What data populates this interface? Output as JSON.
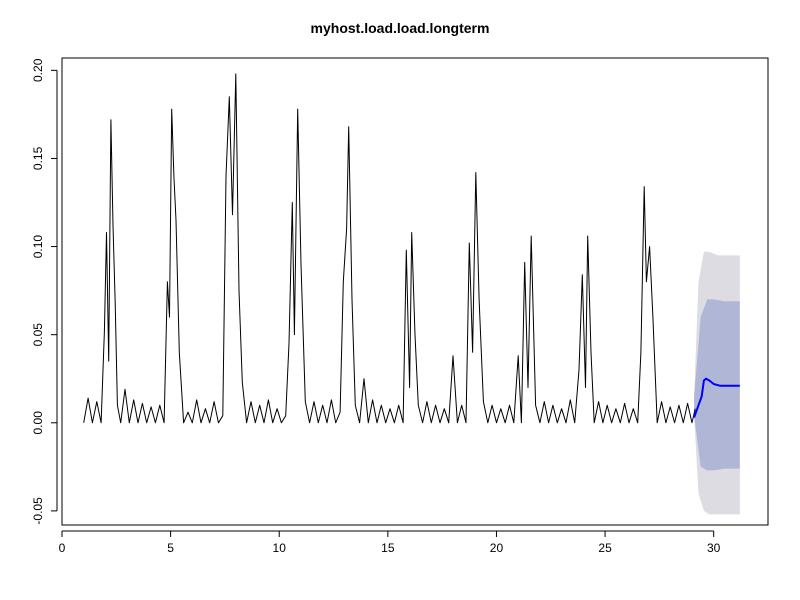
{
  "chart_data": {
    "type": "line",
    "title": "myhost.load.load.longterm",
    "xlabel": "",
    "ylabel": "",
    "xlim": [
      0,
      32.5
    ],
    "ylim": [
      -0.058,
      0.207
    ],
    "x_ticks": [
      0,
      5,
      10,
      15,
      20,
      25,
      30
    ],
    "x_tick_labels": [
      "0",
      "5",
      "10",
      "15",
      "20",
      "25",
      "30"
    ],
    "y_ticks": [
      -0.05,
      0.0,
      0.05,
      0.1,
      0.15,
      0.2
    ],
    "y_tick_labels": [
      "-0.05",
      "0.00",
      "0.05",
      "0.10",
      "0.15",
      "0.20"
    ],
    "grid": false,
    "legend": "none",
    "colors": {
      "history": "#000000",
      "forecast": "#0000ff",
      "band_inner": "#b0b6d6",
      "band_outer": "#dcdce2"
    },
    "history_peaks": [
      {
        "x": 2.25,
        "y": 0.172
      },
      {
        "x": 5.0,
        "y": 0.178
      },
      {
        "x": 7.85,
        "y": 0.198
      },
      {
        "x": 10.65,
        "y": 0.178
      },
      {
        "x": 13.2,
        "y": 0.168
      },
      {
        "x": 16.05,
        "y": 0.108
      },
      {
        "x": 18.85,
        "y": 0.142
      },
      {
        "x": 21.3,
        "y": 0.106
      },
      {
        "x": 24.15,
        "y": 0.106
      },
      {
        "x": 26.85,
        "y": 0.134
      }
    ],
    "series": [
      {
        "values_x": [
          1.0,
          1.2,
          1.4,
          1.6,
          1.8,
          1.95,
          2.05,
          2.15,
          2.25,
          2.35,
          2.45,
          2.55,
          2.7,
          2.9,
          3.1,
          3.3,
          3.5,
          3.7,
          3.9,
          4.1,
          4.3,
          4.5,
          4.7,
          4.85,
          4.95,
          5.05,
          5.15,
          5.25,
          5.4,
          5.6,
          5.8,
          6.0,
          6.2,
          6.4,
          6.6,
          6.8,
          7.0,
          7.2,
          7.4,
          7.55,
          7.7,
          7.85,
          8.0,
          8.15,
          8.3,
          8.5,
          8.7,
          8.9,
          9.1,
          9.3,
          9.5,
          9.7,
          9.9,
          10.1,
          10.3,
          10.45,
          10.6,
          10.7,
          10.85,
          11.0,
          11.2,
          11.4,
          11.6,
          11.8,
          12.0,
          12.2,
          12.4,
          12.6,
          12.8,
          12.95,
          13.1,
          13.2,
          13.35,
          13.5,
          13.7,
          13.9,
          14.1,
          14.3,
          14.5,
          14.7,
          14.9,
          15.1,
          15.3,
          15.5,
          15.7,
          15.85,
          16.0,
          16.1,
          16.25,
          16.4,
          16.6,
          16.8,
          17.0,
          17.2,
          17.4,
          17.6,
          17.8,
          18.0,
          18.2,
          18.4,
          18.6,
          18.75,
          18.9,
          19.05,
          19.2,
          19.4,
          19.6,
          19.8,
          20.0,
          20.2,
          20.4,
          20.6,
          20.8,
          21.0,
          21.15,
          21.3,
          21.45,
          21.6,
          21.8,
          22.0,
          22.2,
          22.4,
          22.6,
          22.8,
          23.0,
          23.2,
          23.4,
          23.6,
          23.8,
          23.95,
          24.1,
          24.2,
          24.35,
          24.5,
          24.7,
          24.9,
          25.1,
          25.3,
          25.5,
          25.7,
          25.9,
          26.1,
          26.3,
          26.5,
          26.65,
          26.8,
          26.9,
          27.05,
          27.2,
          27.4,
          27.6,
          27.8,
          28.0,
          28.2,
          28.4,
          28.6,
          28.8,
          29.0,
          29.15
        ],
        "values_y": [
          0.0,
          0.014,
          0.0,
          0.012,
          0.0,
          0.052,
          0.108,
          0.035,
          0.172,
          0.112,
          0.068,
          0.01,
          0.0,
          0.019,
          0.0,
          0.013,
          0.0,
          0.011,
          0.0,
          0.009,
          0.0,
          0.01,
          0.0,
          0.08,
          0.06,
          0.178,
          0.14,
          0.115,
          0.04,
          0.0,
          0.006,
          0.0,
          0.013,
          0.0,
          0.008,
          0.0,
          0.012,
          0.0,
          0.004,
          0.14,
          0.185,
          0.118,
          0.198,
          0.075,
          0.023,
          0.0,
          0.012,
          0.0,
          0.01,
          0.0,
          0.013,
          0.0,
          0.008,
          0.0,
          0.004,
          0.045,
          0.125,
          0.05,
          0.178,
          0.09,
          0.012,
          0.0,
          0.012,
          0.0,
          0.01,
          0.0,
          0.013,
          0.0,
          0.006,
          0.08,
          0.11,
          0.168,
          0.07,
          0.01,
          0.0,
          0.025,
          0.0,
          0.013,
          0.0,
          0.01,
          0.0,
          0.008,
          0.0,
          0.01,
          0.0,
          0.098,
          0.02,
          0.108,
          0.05,
          0.01,
          0.0,
          0.012,
          0.0,
          0.01,
          0.0,
          0.008,
          0.0,
          0.038,
          0.0,
          0.01,
          0.0,
          0.102,
          0.04,
          0.142,
          0.07,
          0.012,
          0.0,
          0.01,
          0.0,
          0.008,
          0.0,
          0.01,
          0.0,
          0.038,
          0.0,
          0.091,
          0.02,
          0.106,
          0.01,
          0.0,
          0.012,
          0.0,
          0.01,
          0.0,
          0.008,
          0.0,
          0.013,
          0.0,
          0.03,
          0.084,
          0.02,
          0.106,
          0.04,
          0.0,
          0.012,
          0.0,
          0.01,
          0.0,
          0.008,
          0.0,
          0.011,
          0.0,
          0.008,
          0.0,
          0.04,
          0.134,
          0.08,
          0.1,
          0.06,
          0.0,
          0.012,
          0.0,
          0.009,
          0.0,
          0.01,
          0.0,
          0.011,
          0.0,
          0.008
        ]
      },
      {
        "values_x": [
          29.1,
          29.3,
          29.45,
          29.55,
          29.65,
          29.8,
          30.0,
          30.3,
          30.6,
          31.0,
          31.2
        ],
        "values_y": [
          0.003,
          0.01,
          0.015,
          0.024,
          0.025,
          0.024,
          0.022,
          0.021,
          0.021,
          0.021,
          0.021
        ]
      }
    ],
    "bands": [
      {
        "x": [
          29.1,
          29.4,
          29.7,
          30.0,
          30.5,
          31.2
        ],
        "lower": [
          0.004,
          -0.025,
          -0.027,
          -0.027,
          -0.026,
          -0.026
        ],
        "upper": [
          0.015,
          0.06,
          0.07,
          0.07,
          0.069,
          0.069
        ]
      },
      {
        "x": [
          29.1,
          29.3,
          29.55,
          29.8,
          30.2,
          31.2
        ],
        "lower": [
          0.004,
          -0.04,
          -0.05,
          -0.052,
          -0.052,
          -0.052
        ],
        "upper": [
          0.015,
          0.08,
          0.097,
          0.097,
          0.095,
          0.095
        ]
      }
    ]
  }
}
